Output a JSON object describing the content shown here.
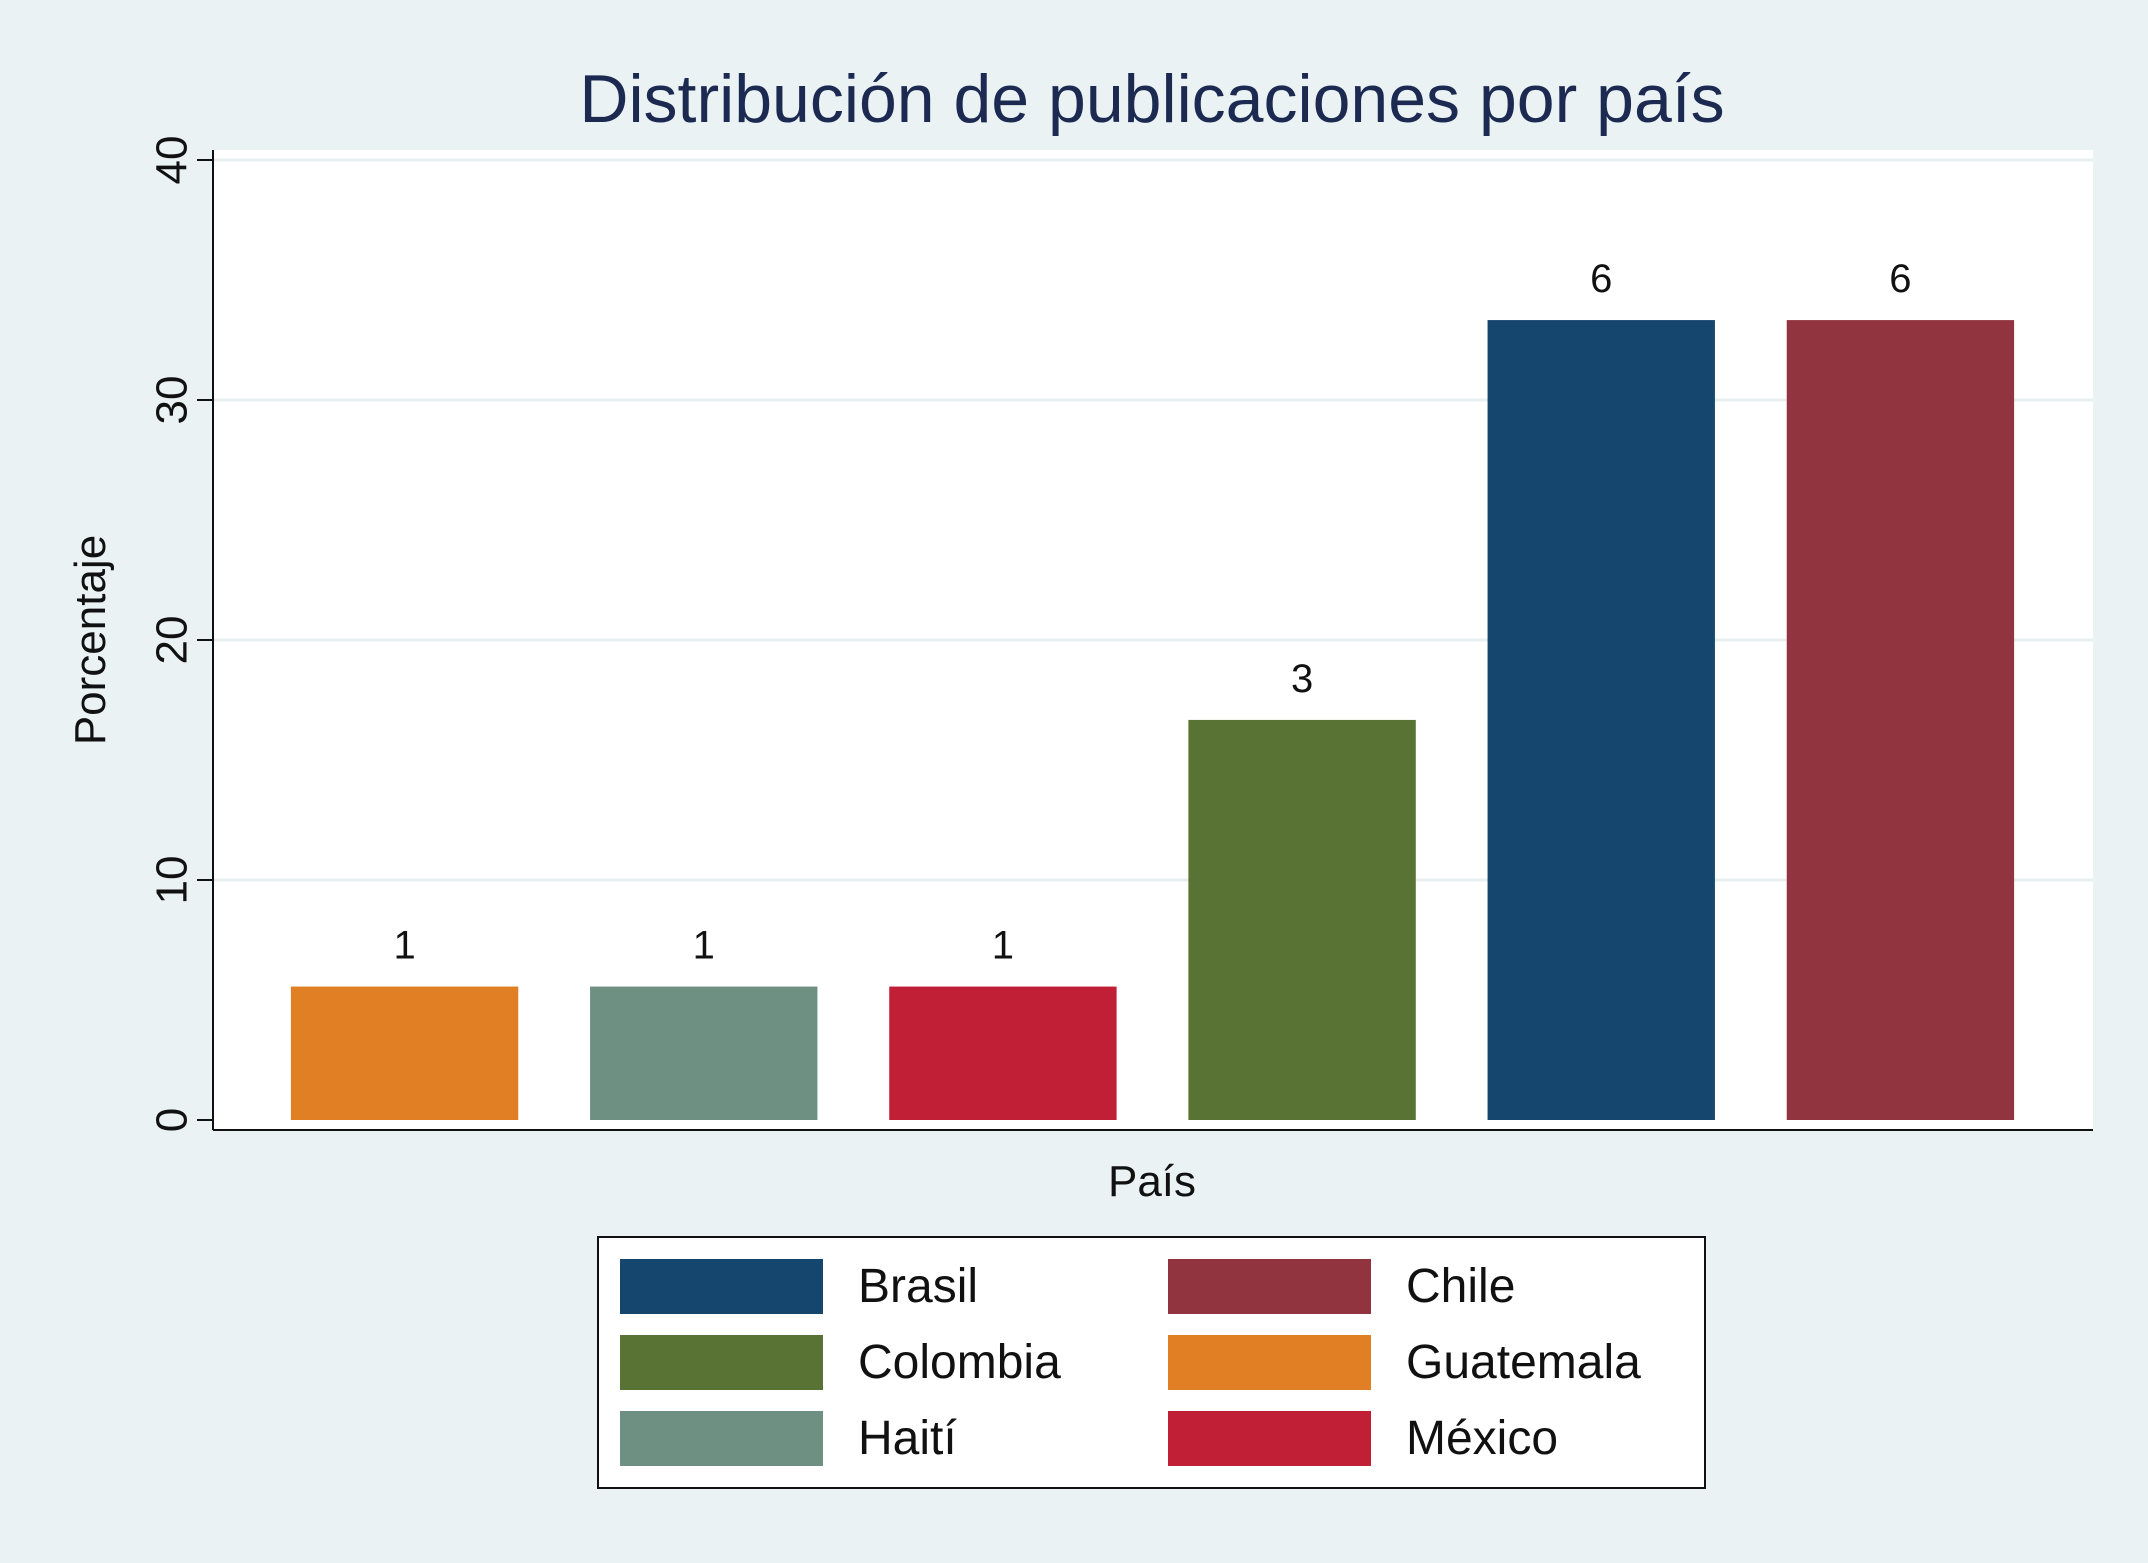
{
  "chart_data": {
    "type": "bar",
    "title": "Distribución de publicaciones por país",
    "xlabel": "País",
    "ylabel": "Porcentaje",
    "ylim": [
      0,
      40
    ],
    "yticks": [
      0,
      10,
      20,
      30,
      40
    ],
    "grid": true,
    "legend_position": "bottom",
    "series": [
      {
        "name": "Guatemala",
        "value": 5.56,
        "label": "1",
        "color": "#e07f24"
      },
      {
        "name": "Haití",
        "value": 5.56,
        "label": "1",
        "color": "#6e9083"
      },
      {
        "name": "México",
        "value": 5.56,
        "label": "1",
        "color": "#c11f36"
      },
      {
        "name": "Colombia",
        "value": 16.67,
        "label": "3",
        "color": "#587333"
      },
      {
        "name": "Brasil",
        "value": 33.33,
        "label": "6",
        "color": "#15466d"
      },
      {
        "name": "Chile",
        "value": 33.33,
        "label": "6",
        "color": "#91343f"
      }
    ],
    "legend": [
      "Brasil",
      "Chile",
      "Colombia",
      "Guatemala",
      "Haití",
      "México"
    ]
  }
}
